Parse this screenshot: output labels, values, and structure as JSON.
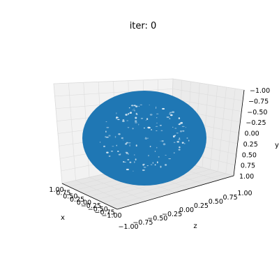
{
  "chart_data": {
    "type": "scatter",
    "projection": "3d",
    "title": "iter: 0",
    "xlabel": "x",
    "ylabel": "y",
    "zlabel": "z",
    "xlim": [
      1.0,
      -1.0
    ],
    "ylim": [
      1.0,
      -1.0
    ],
    "zlim": [
      -1.0,
      1.0
    ],
    "x_ticks": [
      "1.00",
      "0.75",
      "0.50",
      "0.25",
      "0.00",
      "−0.25",
      "−0.50",
      "−0.75",
      "−1.00"
    ],
    "y_ticks": [
      "−1.00",
      "−0.75",
      "−0.50",
      "−0.25",
      "0.00",
      "0.25",
      "0.50",
      "0.75",
      "1.00"
    ],
    "z_ticks": [
      "−1.00",
      "−0.75",
      "−0.50",
      "−0.25",
      "0.00",
      "0.25",
      "0.50",
      "0.75",
      "1.00"
    ],
    "grid": true,
    "series": [
      {
        "marker": "point cloud",
        "color": "#1f77b4",
        "shape": "unit sphere",
        "center": [
          0,
          0,
          0
        ],
        "radius": 1.0
      }
    ]
  },
  "colors": {
    "point_color": "#1f77b4",
    "pane_color": "#f2f2f2",
    "grid_color": "#dcdcdc"
  }
}
